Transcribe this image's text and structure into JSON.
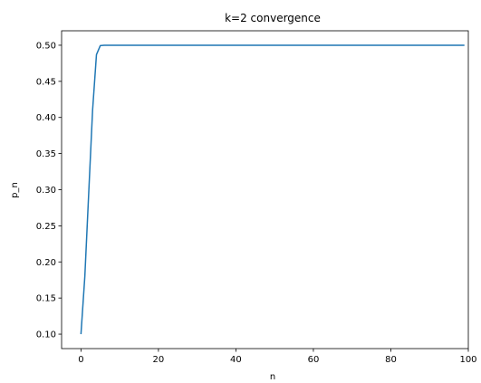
{
  "chart_data": {
    "type": "line",
    "title": "k=2 convergence",
    "xlabel": "n",
    "ylabel": "p_n",
    "xlim": [
      -5,
      100
    ],
    "ylim": [
      0.08,
      0.52
    ],
    "x_ticks": [
      0,
      20,
      40,
      60,
      80,
      100
    ],
    "x_tick_labels": [
      "0",
      "20",
      "40",
      "60",
      "80",
      "100"
    ],
    "y_ticks": [
      0.1,
      0.15,
      0.2,
      0.25,
      0.3,
      0.35,
      0.4,
      0.45,
      0.5
    ],
    "y_tick_labels": [
      "0.10",
      "0.15",
      "0.20",
      "0.25",
      "0.30",
      "0.35",
      "0.40",
      "0.45",
      "0.50"
    ],
    "grid": false,
    "series": [
      {
        "color": "#1f77b4",
        "x": [
          0,
          1,
          2,
          3,
          4,
          5,
          6,
          10,
          20,
          30,
          40,
          50,
          60,
          70,
          80,
          90,
          99
        ],
        "y": [
          0.1,
          0.18,
          0.295,
          0.41,
          0.487,
          0.4995,
          0.5,
          0.5,
          0.5,
          0.5,
          0.5,
          0.5,
          0.5,
          0.5,
          0.5,
          0.5,
          0.5
        ]
      }
    ]
  }
}
